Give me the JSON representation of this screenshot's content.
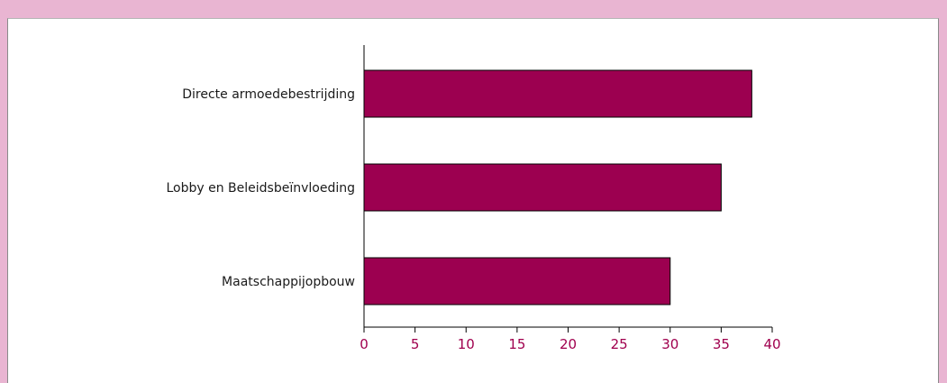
{
  "chart_data": {
    "type": "bar",
    "orientation": "horizontal",
    "categories": [
      "Directe armoedebestrijding",
      "Lobby en Beleidsbeïnvloeding",
      "Maatschappijopbouw"
    ],
    "values": [
      38,
      35,
      30
    ],
    "xlim": [
      0,
      40
    ],
    "xticks": [
      0,
      5,
      10,
      15,
      20,
      25,
      30,
      35,
      40
    ],
    "grid": false,
    "legend": "none"
  },
  "colors": {
    "bar": "#9c0050",
    "tick_label": "#a0004e",
    "axis": "#000000",
    "frame_background": "#e9b5d2",
    "panel_background": "#ffffff"
  }
}
